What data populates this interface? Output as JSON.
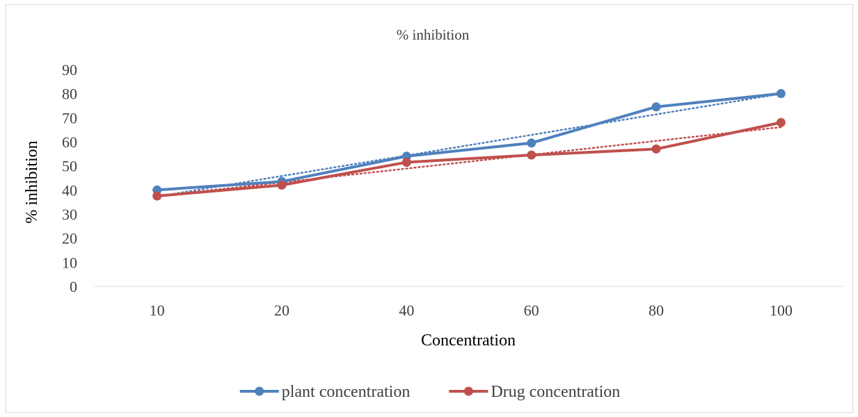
{
  "chart_data": {
    "type": "line",
    "title": "% inhibition",
    "xlabel": "Concentration",
    "ylabel": "% inhibition",
    "categories": [
      "10",
      "20",
      "40",
      "60",
      "80",
      "100"
    ],
    "ylim": [
      0,
      90
    ],
    "yticks": [
      0,
      10,
      20,
      30,
      40,
      50,
      60,
      70,
      80,
      90
    ],
    "grid": false,
    "legend_position": "bottom",
    "trendlines": "linear, dotted",
    "series": [
      {
        "name": "plant concentration",
        "color": "#4f81bd",
        "values": [
          40,
          43.5,
          54,
          59.5,
          74.5,
          80
        ]
      },
      {
        "name": "Drug concentration",
        "color": "#c0504d",
        "values": [
          37.5,
          42,
          51.5,
          54.5,
          57,
          68
        ]
      }
    ]
  }
}
